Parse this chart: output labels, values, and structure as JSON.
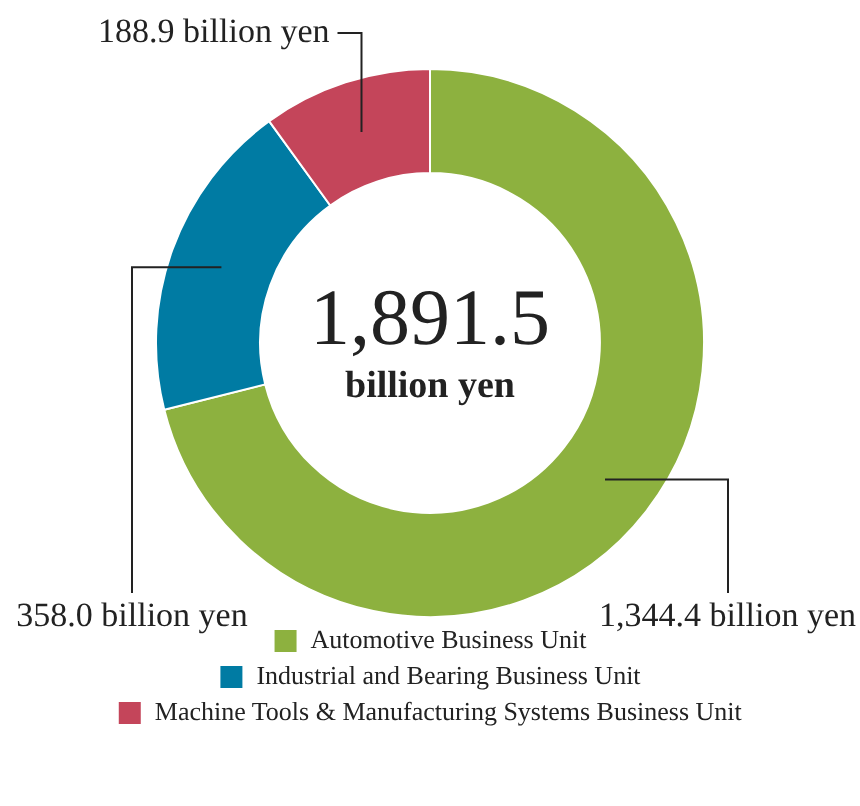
{
  "chart_data": {
    "type": "donut",
    "categories": [
      "Automotive Business Unit",
      "Industrial and Bearing Business Unit",
      "Machine Tools & Manufacturing Systems Business Unit"
    ],
    "values": [
      1344.4,
      358.0,
      188.9
    ],
    "colors": [
      "#8db13f",
      "#007ba3",
      "#c4455a"
    ],
    "value_labels": [
      "1,344.4 billion yen",
      "358.0 billion yen",
      "188.9 billion yen"
    ],
    "annotations": [
      "1,891.5",
      "billion yen"
    ],
    "legend": "bottom"
  }
}
